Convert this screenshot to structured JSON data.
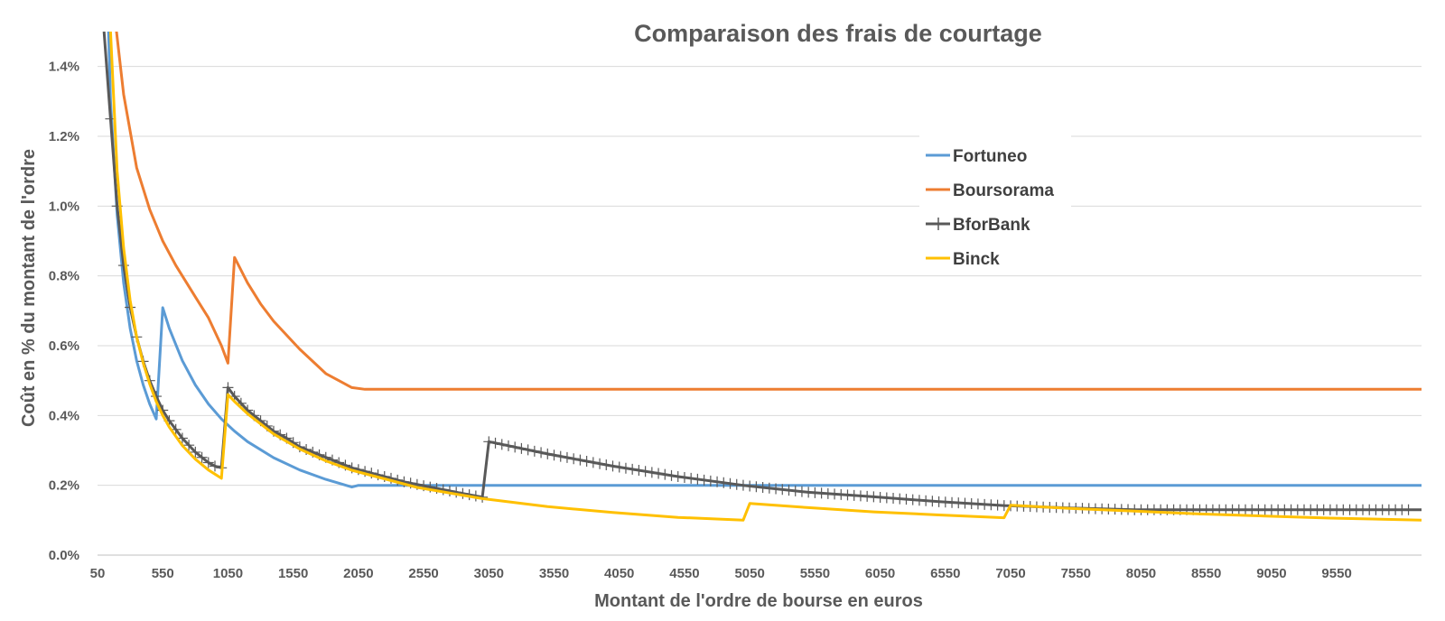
{
  "chart_data": {
    "type": "line",
    "title": "Comparaison des frais de courtage",
    "xlabel": "Montant de l'ordre de bourse en euros",
    "ylabel": "Coût en % du montant de l'ordre",
    "xlim": [
      50,
      10200
    ],
    "ylim": [
      0,
      1.5
    ],
    "x_ticks": [
      50,
      550,
      1050,
      1550,
      2050,
      2550,
      3050,
      3550,
      4050,
      4550,
      5050,
      5550,
      6050,
      6550,
      7050,
      7550,
      8050,
      8550,
      9050,
      9550
    ],
    "y_ticks": [
      {
        "value": 0,
        "label": "0.0%"
      },
      {
        "value": 0.2,
        "label": "0.2%"
      },
      {
        "value": 0.4,
        "label": "0.4%"
      },
      {
        "value": 0.6,
        "label": "0.6%"
      },
      {
        "value": 0.8,
        "label": "0.8%"
      },
      {
        "value": 1.0,
        "label": "1.0%"
      },
      {
        "value": 1.2,
        "label": "1.2%"
      },
      {
        "value": 1.4,
        "label": "1.4%"
      }
    ],
    "grid": true,
    "legend_position": "right",
    "series": [
      {
        "name": "Fortuneo",
        "color": "#5b9bd5",
        "marker": "none",
        "points": [
          [
            100,
            1.95
          ],
          [
            150,
            1.3
          ],
          [
            200,
            0.975
          ],
          [
            250,
            0.78
          ],
          [
            300,
            0.65
          ],
          [
            350,
            0.557
          ],
          [
            400,
            0.4875
          ],
          [
            450,
            0.433
          ],
          [
            500,
            0.39
          ],
          [
            550,
            0.709
          ],
          [
            600,
            0.65
          ],
          [
            700,
            0.557
          ],
          [
            800,
            0.4875
          ],
          [
            900,
            0.433
          ],
          [
            1000,
            0.39
          ],
          [
            1100,
            0.355
          ],
          [
            1200,
            0.325
          ],
          [
            1400,
            0.279
          ],
          [
            1600,
            0.244
          ],
          [
            1800,
            0.217
          ],
          [
            2000,
            0.195
          ],
          [
            2050,
            0.2
          ],
          [
            10200,
            0.2
          ]
        ]
      },
      {
        "name": "Boursorama",
        "color": "#ed7d31",
        "marker": "none",
        "points": [
          [
            150,
            1.65
          ],
          [
            250,
            1.32
          ],
          [
            350,
            1.11
          ],
          [
            450,
            0.99
          ],
          [
            550,
            0.9
          ],
          [
            650,
            0.83
          ],
          [
            800,
            0.74
          ],
          [
            900,
            0.68
          ],
          [
            1000,
            0.6
          ],
          [
            1050,
            0.55
          ],
          [
            1100,
            0.853
          ],
          [
            1200,
            0.78
          ],
          [
            1300,
            0.72
          ],
          [
            1400,
            0.67
          ],
          [
            1600,
            0.59
          ],
          [
            1800,
            0.52
          ],
          [
            2000,
            0.48
          ],
          [
            2100,
            0.475
          ],
          [
            10200,
            0.475
          ]
        ]
      },
      {
        "name": "BforBank",
        "color": "#595959",
        "marker": "plus",
        "points": [
          [
            100,
            1.5
          ],
          [
            150,
            1.25
          ],
          [
            200,
            1.0
          ],
          [
            250,
            0.83
          ],
          [
            300,
            0.71
          ],
          [
            350,
            0.625
          ],
          [
            400,
            0.555
          ],
          [
            450,
            0.5
          ],
          [
            500,
            0.455
          ],
          [
            550,
            0.415
          ],
          [
            600,
            0.385
          ],
          [
            650,
            0.36
          ],
          [
            700,
            0.335
          ],
          [
            750,
            0.315
          ],
          [
            800,
            0.295
          ],
          [
            850,
            0.28
          ],
          [
            900,
            0.265
          ],
          [
            950,
            0.255
          ],
          [
            1000,
            0.25
          ],
          [
            1050,
            0.48
          ],
          [
            1100,
            0.455
          ],
          [
            1150,
            0.435
          ],
          [
            1200,
            0.415
          ],
          [
            1300,
            0.385
          ],
          [
            1400,
            0.355
          ],
          [
            1500,
            0.335
          ],
          [
            1600,
            0.31
          ],
          [
            1800,
            0.28
          ],
          [
            2000,
            0.25
          ],
          [
            2200,
            0.23
          ],
          [
            2400,
            0.21
          ],
          [
            2600,
            0.195
          ],
          [
            2800,
            0.18
          ],
          [
            3000,
            0.166
          ],
          [
            3050,
            0.325
          ],
          [
            3500,
            0.29
          ],
          [
            4000,
            0.255
          ],
          [
            4500,
            0.225
          ],
          [
            5000,
            0.2
          ],
          [
            5500,
            0.18
          ],
          [
            6000,
            0.167
          ],
          [
            6500,
            0.153
          ],
          [
            7000,
            0.142
          ],
          [
            7500,
            0.135
          ],
          [
            8000,
            0.13
          ],
          [
            8500,
            0.13
          ],
          [
            9000,
            0.13
          ],
          [
            9500,
            0.13
          ],
          [
            10200,
            0.13
          ]
        ]
      },
      {
        "name": "Binck",
        "color": "#ffc000",
        "marker": "none",
        "points": [
          [
            150,
            1.5
          ],
          [
            200,
            1.1
          ],
          [
            250,
            0.88
          ],
          [
            300,
            0.73
          ],
          [
            350,
            0.625
          ],
          [
            400,
            0.55
          ],
          [
            450,
            0.49
          ],
          [
            500,
            0.44
          ],
          [
            550,
            0.4
          ],
          [
            600,
            0.367
          ],
          [
            700,
            0.314
          ],
          [
            800,
            0.275
          ],
          [
            900,
            0.244
          ],
          [
            1000,
            0.22
          ],
          [
            1050,
            0.46
          ],
          [
            1100,
            0.44
          ],
          [
            1200,
            0.405
          ],
          [
            1400,
            0.347
          ],
          [
            1600,
            0.304
          ],
          [
            1800,
            0.27
          ],
          [
            2000,
            0.243
          ],
          [
            2500,
            0.194
          ],
          [
            3000,
            0.162
          ],
          [
            3500,
            0.139
          ],
          [
            4000,
            0.122
          ],
          [
            4500,
            0.108
          ],
          [
            5000,
            0.1
          ],
          [
            5050,
            0.148
          ],
          [
            5500,
            0.136
          ],
          [
            6000,
            0.124
          ],
          [
            6500,
            0.115
          ],
          [
            7000,
            0.107
          ],
          [
            7050,
            0.143
          ],
          [
            7500,
            0.134
          ],
          [
            8000,
            0.126
          ],
          [
            8500,
            0.118
          ],
          [
            9000,
            0.112
          ],
          [
            9500,
            0.106
          ],
          [
            10200,
            0.1
          ]
        ]
      }
    ]
  }
}
